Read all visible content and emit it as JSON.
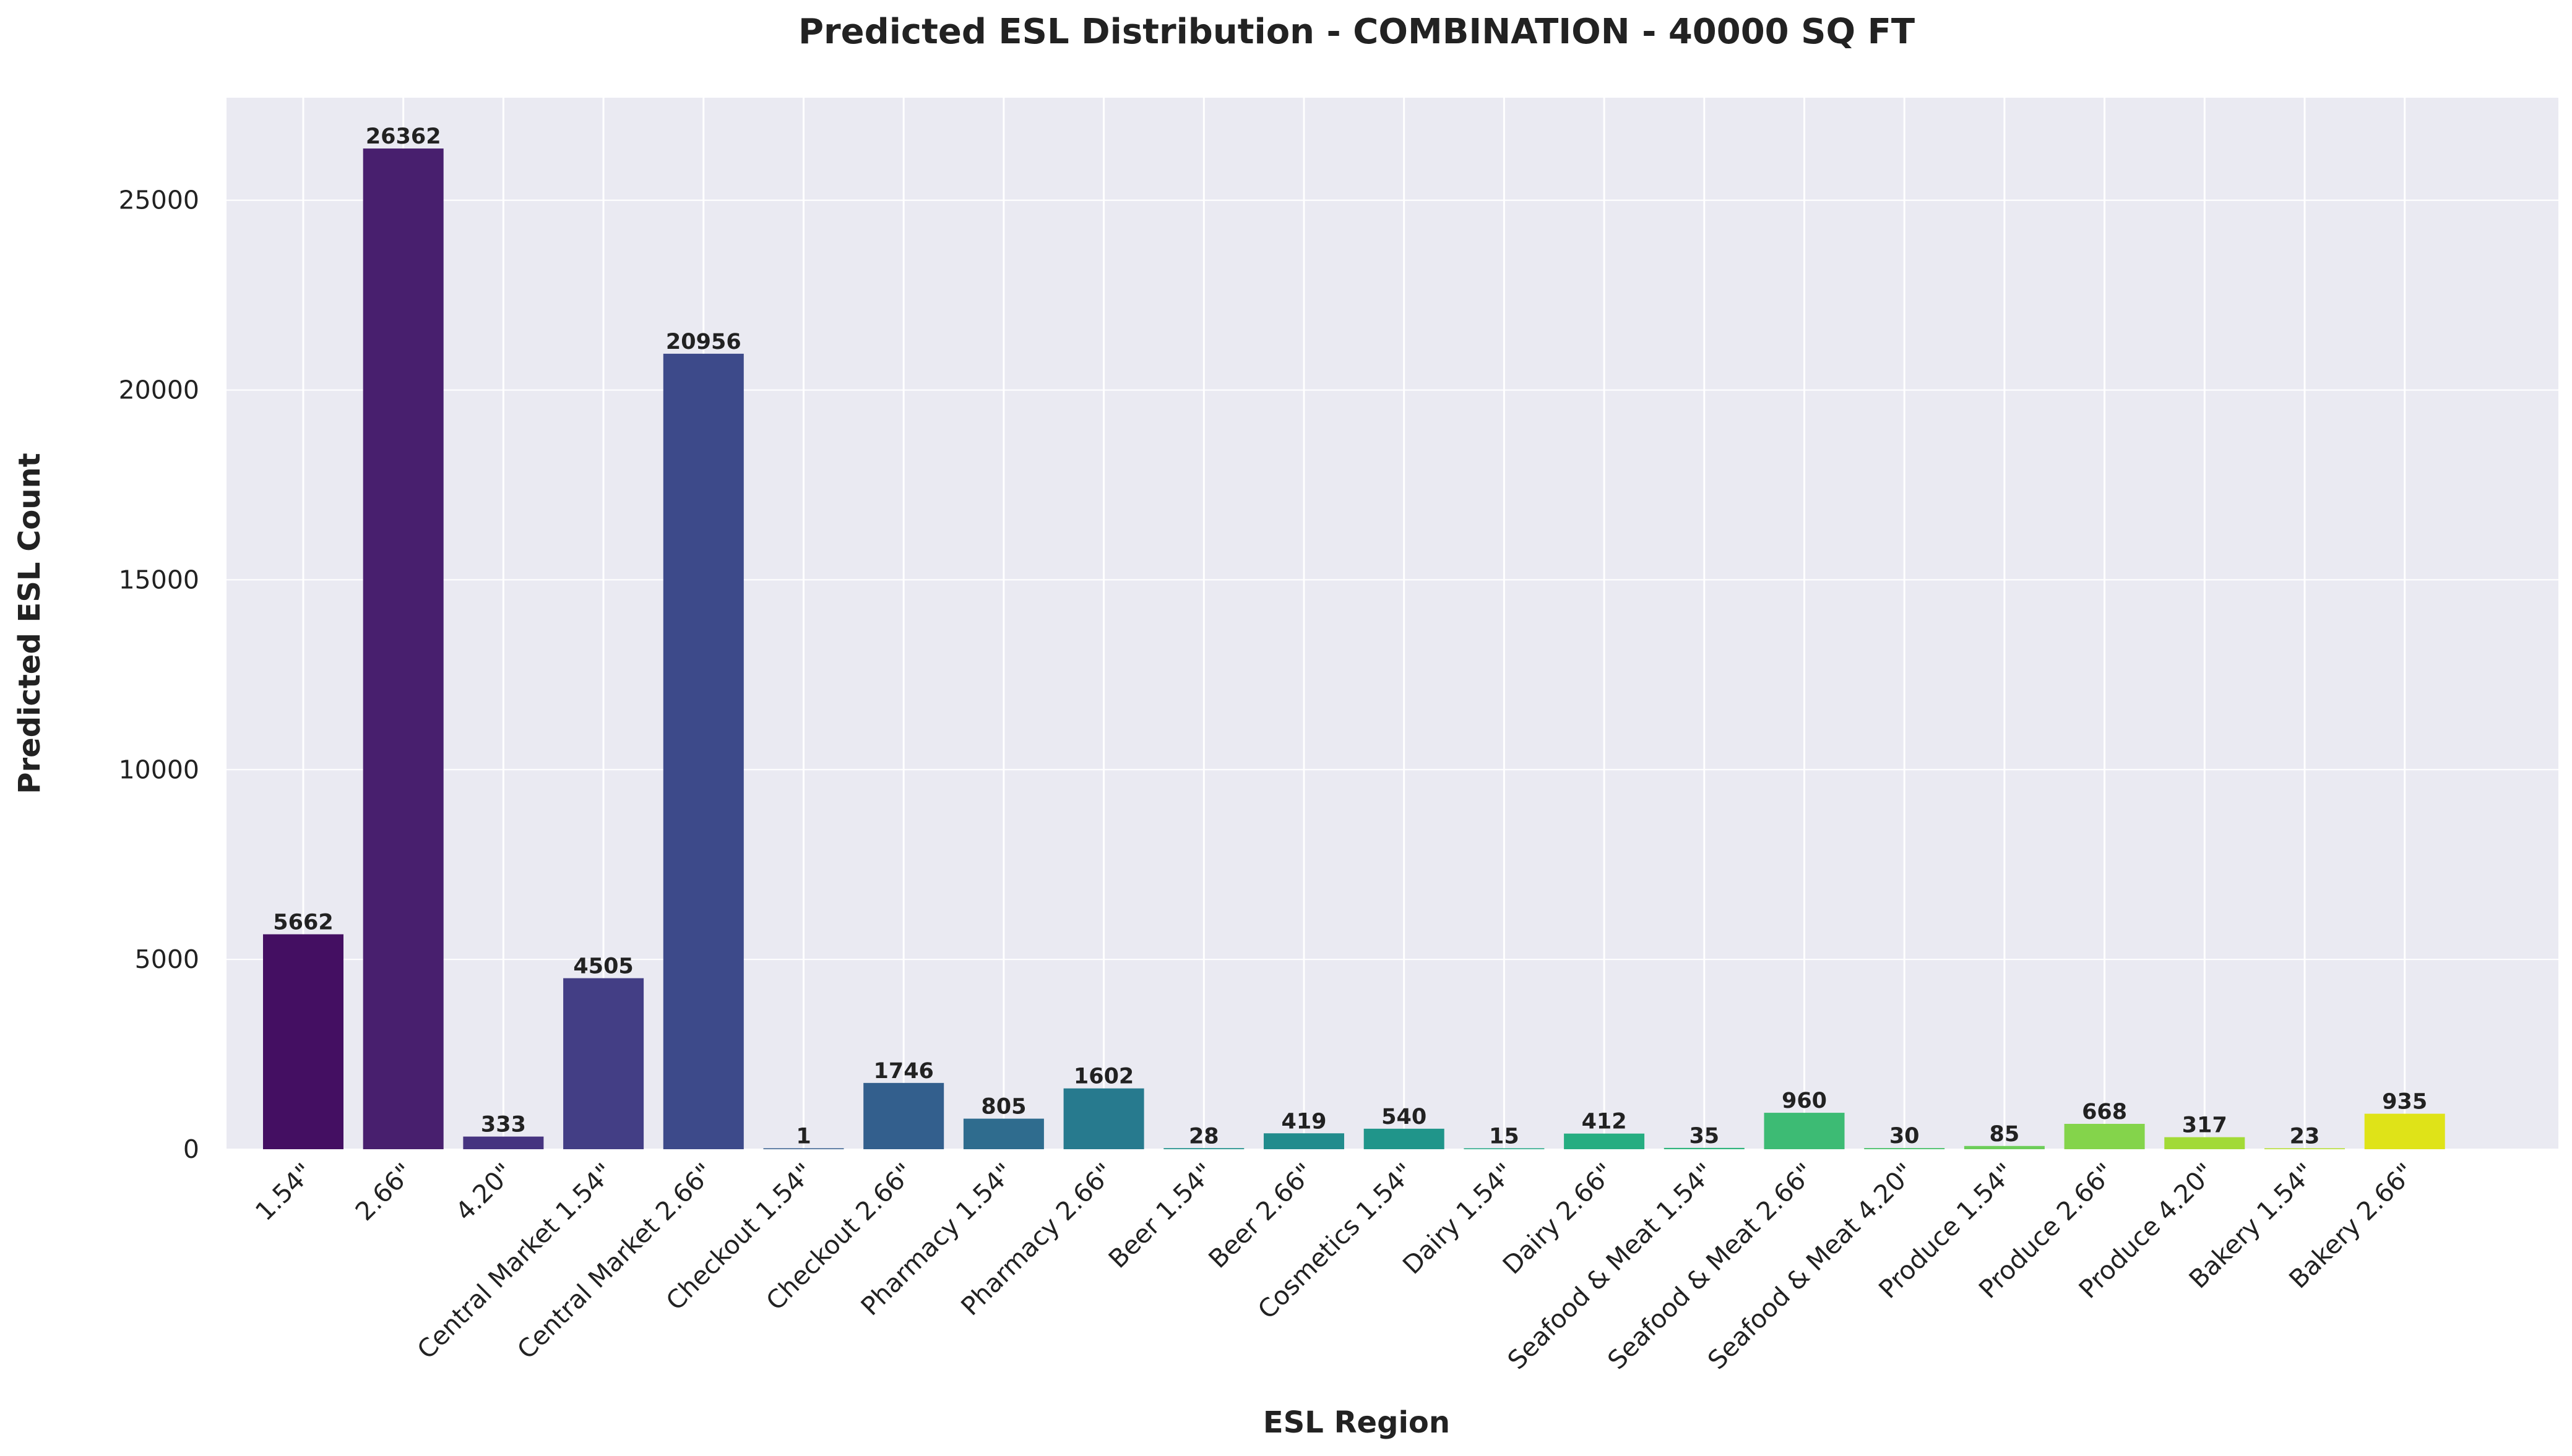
{
  "chart_data": {
    "type": "bar",
    "title": "Predicted ESL Distribution - COMBINATION - 40000 SQ FT",
    "xlabel": "ESL Region",
    "ylabel": "Predicted ESL Count",
    "ylim": [
      0,
      27700
    ],
    "yticks": [
      0,
      5000,
      10000,
      15000,
      20000,
      25000
    ],
    "grid": true,
    "categories": [
      "1.54\"",
      "2.66\"",
      "4.20\"",
      "Central Market 1.54\"",
      "Central Market 2.66\"",
      "Checkout 1.54\"",
      "Checkout 2.66\"",
      "Pharmacy 1.54\"",
      "Pharmacy 2.66\"",
      "Beer 1.54\"",
      "Beer 2.66\"",
      "Cosmetics 1.54\"",
      "Dairy 1.54\"",
      "Dairy 2.66\"",
      "Seafood & Meat 1.54\"",
      "Seafood & Meat 2.66\"",
      "Seafood & Meat 4.20\"",
      "Produce 1.54\"",
      "Produce 2.66\"",
      "Produce 4.20\"",
      "Bakery 1.54\"",
      "Bakery 2.66\""
    ],
    "values": [
      5662,
      26362,
      333,
      4505,
      20956,
      1,
      1746,
      805,
      1602,
      28,
      419,
      540,
      15,
      412,
      35,
      960,
      30,
      85,
      668,
      317,
      23,
      935
    ],
    "colors": [
      "#440f62",
      "#481f6e",
      "#463480",
      "#433e85",
      "#3d4a8a",
      "#355f8d",
      "#335f8d",
      "#2f6c8e",
      "#277a8e",
      "#21918c",
      "#228c8d",
      "#20958a",
      "#22a884",
      "#26ad81",
      "#2fb47c",
      "#3dbb74",
      "#4cc26c",
      "#6dcd59",
      "#84d44b",
      "#a2da37",
      "#b5de2b",
      "#dfe318"
    ],
    "plot_background": "#eaeaf2",
    "grid_color": "#ffffff"
  }
}
